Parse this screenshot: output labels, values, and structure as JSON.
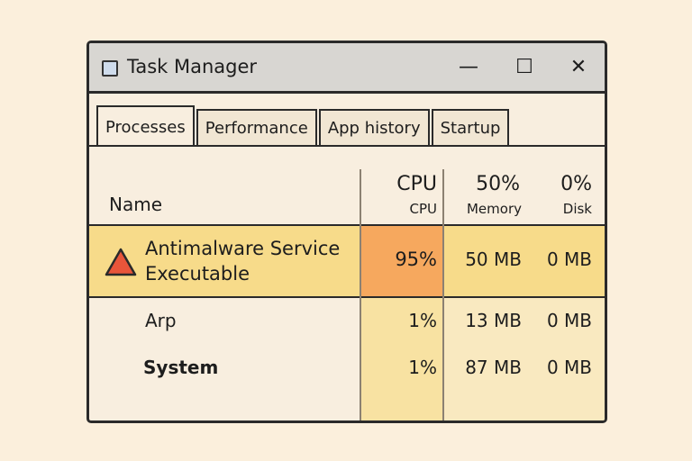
{
  "window": {
    "title": "Task Manager",
    "minimize": "—",
    "maximize": "☐",
    "close": "✕"
  },
  "tabs": [
    {
      "label": "Processes",
      "active": true
    },
    {
      "label": "Performance"
    },
    {
      "label": "App history"
    },
    {
      "label": "Startup"
    }
  ],
  "columns": {
    "name": "Name",
    "cpu_top": "CPU",
    "cpu": "CPU",
    "memory_top": "50%",
    "memory": "Memory",
    "disk_top": "0%",
    "disk": "Disk"
  },
  "rows": [
    {
      "name_line1": "Antimalware Service",
      "name_line2": "Executable",
      "cpu": "95%",
      "memory": "50 MB",
      "disk": "0 MB",
      "icon": "warning-triangle-icon",
      "highlight": "#f7db8a"
    },
    {
      "name": "Arp",
      "cpu": "1%",
      "memory": "13 MB",
      "disk": "0 MB"
    },
    {
      "name": "System",
      "cpu": "1%",
      "memory": "87 MB",
      "disk": "0 MB"
    }
  ],
  "colors": {
    "cpu_high": "#f6a85e",
    "row_highlight": "#f7db8a",
    "warning": "#e8553a"
  }
}
